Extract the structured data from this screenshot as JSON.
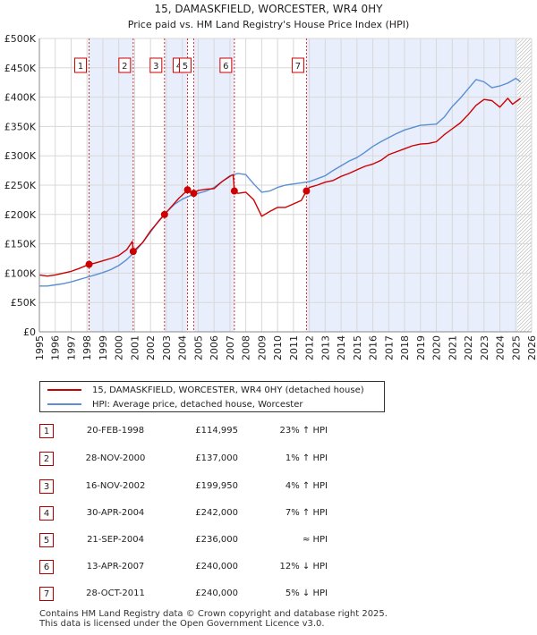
{
  "chart_data": {
    "type": "line",
    "title": "15, DAMASKFIELD, WORCESTER, WR4 0HY",
    "subtitle": "Price paid vs. HM Land Registry's House Price Index (HPI)",
    "ylim": [
      0,
      500000
    ],
    "xlim": [
      1995,
      2026
    ],
    "y_ticks": [
      {
        "value": 0,
        "label": "£0"
      },
      {
        "value": 50000,
        "label": "£50K"
      },
      {
        "value": 100000,
        "label": "£100K"
      },
      {
        "value": 150000,
        "label": "£150K"
      },
      {
        "value": 200000,
        "label": "£200K"
      },
      {
        "value": 250000,
        "label": "£250K"
      },
      {
        "value": 300000,
        "label": "£300K"
      },
      {
        "value": 350000,
        "label": "£350K"
      },
      {
        "value": 400000,
        "label": "£400K"
      },
      {
        "value": 450000,
        "label": "£450K"
      },
      {
        "value": 500000,
        "label": "£500K"
      }
    ],
    "x_ticks": [
      "1995",
      "1996",
      "1997",
      "1998",
      "1999",
      "2000",
      "2001",
      "2002",
      "2003",
      "2004",
      "2005",
      "2006",
      "2007",
      "2008",
      "2009",
      "2010",
      "2011",
      "2012",
      "2013",
      "2014",
      "2015",
      "2016",
      "2017",
      "2018",
      "2019",
      "2020",
      "2021",
      "2022",
      "2023",
      "2024",
      "2025",
      "2026"
    ],
    "grid": true,
    "future_hatch_start": 2025.1,
    "series": [
      {
        "name": "15, DAMASKFIELD, WORCESTER, WR4 0HY (detached house)",
        "color": "#cc0000",
        "x": [
          1995.0,
          1995.5,
          1996.0,
          1996.5,
          1997.0,
          1997.5,
          1998.13,
          1998.5,
          1999.0,
          1999.5,
          2000.0,
          2000.5,
          2000.85,
          2000.91,
          2001.5,
          2002.0,
          2002.5,
          2002.88,
          2003.3,
          2003.8,
          2004.2,
          2004.33,
          2004.5,
          2004.72,
          2005.0,
          2005.5,
          2006.0,
          2006.5,
          2007.0,
          2007.2,
          2007.28,
          2007.5,
          2008.0,
          2008.5,
          2009.0,
          2009.5,
          2010.0,
          2010.5,
          2011.0,
          2011.5,
          2011.82,
          2012.0,
          2012.5,
          2013.0,
          2013.5,
          2014.0,
          2014.5,
          2015.0,
          2015.5,
          2016.0,
          2016.5,
          2017.0,
          2017.5,
          2018.0,
          2018.5,
          2019.0,
          2019.5,
          2020.0,
          2020.5,
          2021.0,
          2021.5,
          2022.0,
          2022.5,
          2023.0,
          2023.5,
          2024.0,
          2024.5,
          2024.8,
          2025.0,
          2025.3
        ],
        "values": [
          97000,
          95000,
          97000,
          100000,
          103000,
          108000,
          114995,
          117000,
          121000,
          125000,
          130000,
          140000,
          154000,
          137000,
          152000,
          172000,
          188000,
          199950,
          213000,
          228000,
          238000,
          242000,
          238000,
          236000,
          241000,
          243000,
          244000,
          256000,
          265000,
          268000,
          240000,
          236000,
          238000,
          225000,
          197000,
          205000,
          212000,
          212000,
          218000,
          224000,
          240000,
          246000,
          250000,
          255000,
          258000,
          265000,
          270000,
          276000,
          282000,
          286000,
          292000,
          302000,
          307000,
          312000,
          317000,
          320000,
          321000,
          324000,
          336000,
          346000,
          356000,
          370000,
          386000,
          396000,
          394000,
          383000,
          398000,
          388000,
          392000,
          398000
        ]
      },
      {
        "name": "HPI: Average price, detached house, Worcester",
        "color": "#5a8fd0",
        "x": [
          1995.0,
          1995.5,
          1996.0,
          1996.5,
          1997.0,
          1997.5,
          1998.0,
          1998.5,
          1999.0,
          1999.5,
          2000.0,
          2000.5,
          2001.0,
          2001.5,
          2002.0,
          2002.5,
          2003.0,
          2003.5,
          2004.0,
          2004.5,
          2005.0,
          2005.5,
          2006.0,
          2006.5,
          2007.0,
          2007.5,
          2008.0,
          2008.5,
          2009.0,
          2009.5,
          2010.0,
          2010.5,
          2011.0,
          2011.5,
          2012.0,
          2012.5,
          2013.0,
          2013.5,
          2014.0,
          2014.5,
          2015.0,
          2015.5,
          2016.0,
          2016.5,
          2017.0,
          2017.5,
          2018.0,
          2018.5,
          2019.0,
          2019.5,
          2020.0,
          2020.5,
          2021.0,
          2021.5,
          2022.0,
          2022.5,
          2023.0,
          2023.5,
          2024.0,
          2024.5,
          2025.0,
          2025.3
        ],
        "values": [
          78000,
          78000,
          80000,
          82000,
          85000,
          89000,
          93000,
          97000,
          101000,
          106000,
          113000,
          123000,
          136000,
          152000,
          170000,
          189000,
          204000,
          217000,
          226000,
          232000,
          236000,
          240000,
          246000,
          256000,
          266000,
          270000,
          268000,
          252000,
          238000,
          240000,
          246000,
          250000,
          252000,
          254000,
          256000,
          261000,
          266000,
          275000,
          283000,
          291000,
          297000,
          306000,
          316000,
          324000,
          331000,
          338000,
          344000,
          348000,
          352000,
          353000,
          354000,
          366000,
          384000,
          398000,
          414000,
          430000,
          426000,
          416000,
          419000,
          424000,
          432000,
          426000
        ]
      }
    ],
    "markers": [
      {
        "label": "1",
        "x": 1998.13,
        "value": 114995
      },
      {
        "label": "2",
        "x": 2000.91,
        "value": 137000
      },
      {
        "label": "3",
        "x": 2002.88,
        "value": 199950
      },
      {
        "label": "4",
        "x": 2004.33,
        "value": 242000
      },
      {
        "label": "5",
        "x": 2004.72,
        "value": 236000
      },
      {
        "label": "6",
        "x": 2007.28,
        "value": 240000
      },
      {
        "label": "7",
        "x": 2011.82,
        "value": 240000
      }
    ]
  },
  "legend": {
    "property_label": "15, DAMASKFIELD, WORCESTER, WR4 0HY (detached house)",
    "hpi_label": "HPI: Average price, detached house, Worcester",
    "property_color": "#cc0000",
    "hpi_color": "#5a8fd0"
  },
  "transactions": [
    {
      "num": "1",
      "date": "20-FEB-1998",
      "price": "£114,995",
      "hpi": "23% ↑ HPI"
    },
    {
      "num": "2",
      "date": "28-NOV-2000",
      "price": "£137,000",
      "hpi": "1% ↑ HPI"
    },
    {
      "num": "3",
      "date": "16-NOV-2002",
      "price": "£199,950",
      "hpi": "4% ↑ HPI"
    },
    {
      "num": "4",
      "date": "30-APR-2004",
      "price": "£242,000",
      "hpi": "7% ↑ HPI"
    },
    {
      "num": "5",
      "date": "21-SEP-2004",
      "price": "£236,000",
      "hpi": "≈ HPI"
    },
    {
      "num": "6",
      "date": "13-APR-2007",
      "price": "£240,000",
      "hpi": "12% ↓ HPI"
    },
    {
      "num": "7",
      "date": "28-OCT-2011",
      "price": "£240,000",
      "hpi": "5% ↓ HPI"
    }
  ],
  "footer": {
    "line1": "Contains HM Land Registry data © Crown copyright and database right 2025.",
    "line2": "This data is licensed under the Open Government Licence v3.0."
  }
}
